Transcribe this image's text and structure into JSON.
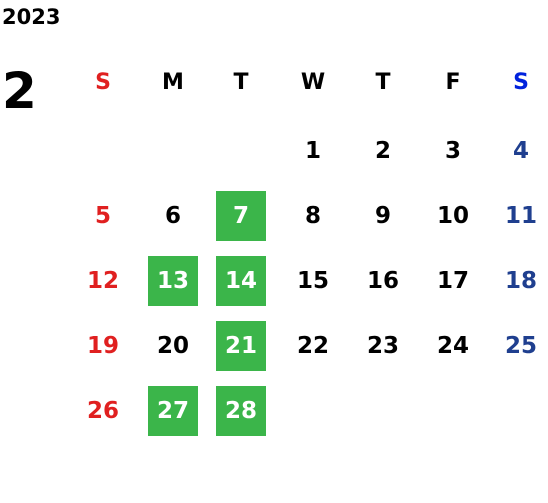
{
  "year": "2023",
  "month": "2",
  "weekdays": [
    "S",
    "M",
    "T",
    "W",
    "T",
    "F",
    "S"
  ],
  "header_colors": [
    "#e02020",
    "#000000",
    "#000000",
    "#000000",
    "#000000",
    "#000000",
    "#0022dd"
  ],
  "day_colors": [
    "#e02020",
    "#000000",
    "#000000",
    "#000000",
    "#000000",
    "#000000",
    "#1f3f8f"
  ],
  "highlight_color": "#3bb54a",
  "highlight_text_color": "#ffffff",
  "weeks": [
    [
      null,
      null,
      null,
      {
        "day": "1",
        "highlight": false
      },
      {
        "day": "2",
        "highlight": false
      },
      {
        "day": "3",
        "highlight": false
      },
      {
        "day": "4",
        "highlight": false
      }
    ],
    [
      {
        "day": "5",
        "highlight": false
      },
      {
        "day": "6",
        "highlight": false
      },
      {
        "day": "7",
        "highlight": true
      },
      {
        "day": "8",
        "highlight": false
      },
      {
        "day": "9",
        "highlight": false
      },
      {
        "day": "10",
        "highlight": false
      },
      {
        "day": "11",
        "highlight": false
      }
    ],
    [
      {
        "day": "12",
        "highlight": false
      },
      {
        "day": "13",
        "highlight": true
      },
      {
        "day": "14",
        "highlight": true
      },
      {
        "day": "15",
        "highlight": false
      },
      {
        "day": "16",
        "highlight": false
      },
      {
        "day": "17",
        "highlight": false
      },
      {
        "day": "18",
        "highlight": false
      }
    ],
    [
      {
        "day": "19",
        "highlight": false
      },
      {
        "day": "20",
        "highlight": false
      },
      {
        "day": "21",
        "highlight": true
      },
      {
        "day": "22",
        "highlight": false
      },
      {
        "day": "23",
        "highlight": false
      },
      {
        "day": "24",
        "highlight": false
      },
      {
        "day": "25",
        "highlight": false
      }
    ],
    [
      {
        "day": "26",
        "highlight": false
      },
      {
        "day": "27",
        "highlight": true
      },
      {
        "day": "28",
        "highlight": true
      },
      null,
      null,
      null,
      null
    ]
  ]
}
